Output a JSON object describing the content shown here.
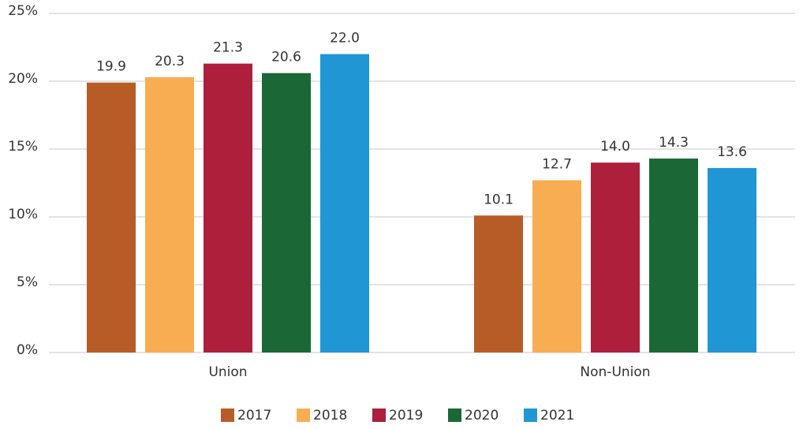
{
  "chart_data": {
    "type": "bar",
    "categories": [
      "Union",
      "Non-Union"
    ],
    "series": [
      {
        "name": "2017",
        "color": "#b85c27",
        "values": [
          19.9,
          10.1
        ],
        "value_labels": [
          "19.9",
          "10.1"
        ]
      },
      {
        "name": "2018",
        "color": "#f9ad52",
        "values": [
          20.3,
          12.7
        ],
        "value_labels": [
          "20.3",
          "12.7"
        ]
      },
      {
        "name": "2019",
        "color": "#ad1f3a",
        "values": [
          21.3,
          14.0
        ],
        "value_labels": [
          "21.3",
          "14.0"
        ]
      },
      {
        "name": "2020",
        "color": "#1b6836",
        "values": [
          20.6,
          14.3
        ],
        "value_labels": [
          "20.6",
          "14.3"
        ]
      },
      {
        "name": "2021",
        "color": "#2196d4",
        "values": [
          22.0,
          13.6
        ],
        "value_labels": [
          "22.0",
          "13.6"
        ]
      }
    ],
    "ylim": [
      0,
      25
    ],
    "yticks": [
      {
        "value": 0,
        "label": "0%"
      },
      {
        "value": 5,
        "label": "5%"
      },
      {
        "value": 10,
        "label": "10%"
      },
      {
        "value": 15,
        "label": "15%"
      },
      {
        "value": 20,
        "label": "20%"
      },
      {
        "value": 25,
        "label": "25%"
      }
    ],
    "grid": true,
    "legend": "bottom"
  }
}
